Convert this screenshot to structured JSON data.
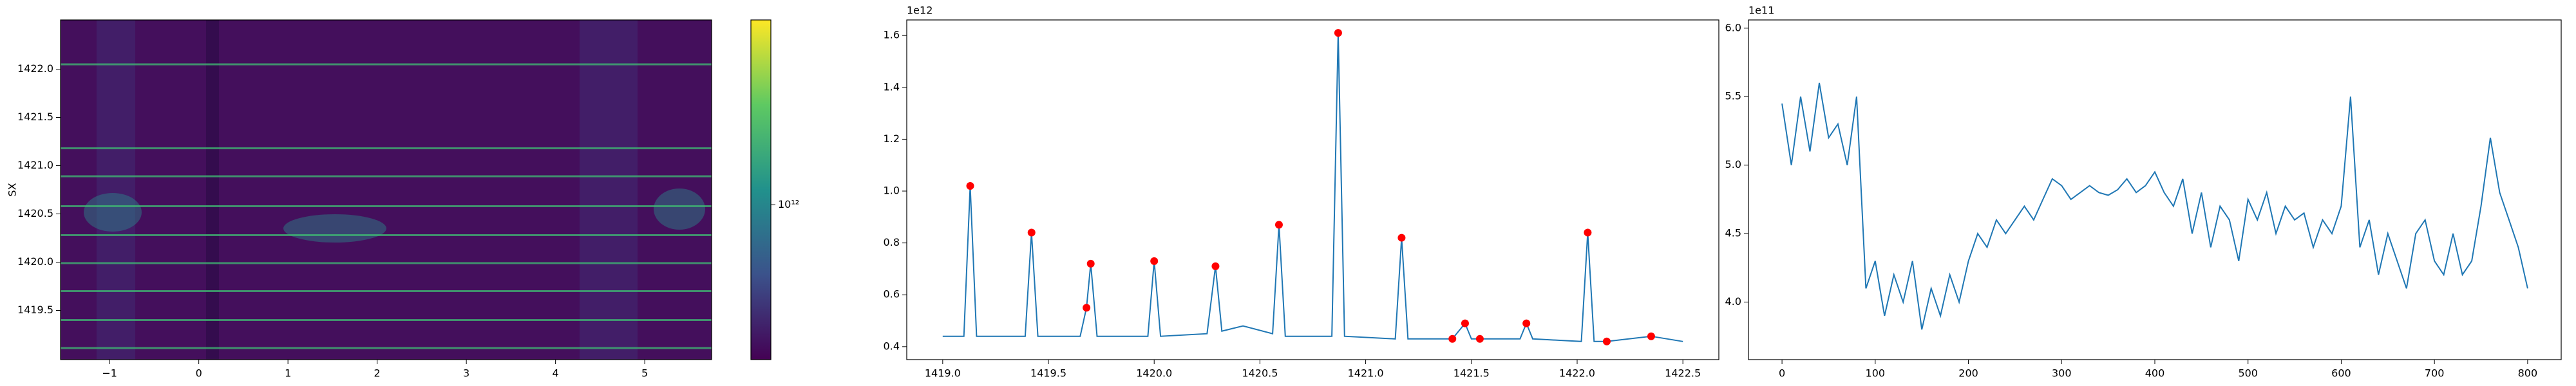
{
  "chart_data": [
    {
      "type": "heatmap",
      "ylabel": "SX",
      "xlim": [
        -1.55,
        5.75
      ],
      "ylim": [
        1418.99,
        1422.51
      ],
      "xticks": [
        {
          "value": -1,
          "label": "−1"
        },
        0,
        1,
        2,
        3,
        4,
        5
      ],
      "yticks": [
        1419.5,
        {
          "value": 1420.0,
          "label": "1420.0"
        },
        1420.5,
        {
          "value": 1421.0,
          "label": "1421.0"
        },
        1421.5,
        {
          "value": 1422.0,
          "label": "1422.0"
        }
      ],
      "bright_rows": [
        1419.11,
        1419.4,
        1419.7,
        1419.99,
        1420.28,
        1420.58,
        1420.89,
        1421.18,
        1422.05
      ],
      "colorbar": {
        "log": true,
        "clim": [
          350000000000.0,
          3500000000000.0
        ],
        "ticks": [
          {
            "value": 1000000000000.0,
            "label": "10¹²"
          }
        ]
      }
    },
    {
      "type": "line",
      "offset_text": "1e12",
      "color": "#1f77b4",
      "xlim": [
        1418.83,
        1422.67
      ],
      "ylim": [
        0.35,
        1.66
      ],
      "xticks": [
        {
          "value": 1419.0,
          "label": "1419.0"
        },
        1419.5,
        {
          "value": 1420.0,
          "label": "1420.0"
        },
        1420.5,
        {
          "value": 1421.0,
          "label": "1421.0"
        },
        1421.5,
        {
          "value": 1422.0,
          "label": "1422.0"
        },
        1422.5
      ],
      "yticks": [
        0.4,
        0.6,
        0.8,
        {
          "value": 1.0,
          "label": "1.0"
        },
        1.2,
        1.4,
        1.6
      ],
      "x": [
        1419.0,
        1419.1,
        1419.13,
        1419.16,
        1419.39,
        1419.42,
        1419.45,
        1419.65,
        1419.68,
        1419.7,
        1419.73,
        1419.97,
        1420.0,
        1420.03,
        1420.25,
        1420.29,
        1420.32,
        1420.42,
        1420.56,
        1420.59,
        1420.62,
        1420.84,
        1420.87,
        1420.9,
        1421.14,
        1421.17,
        1421.2,
        1421.41,
        1421.47,
        1421.5,
        1421.54,
        1421.73,
        1421.76,
        1421.79,
        1422.02,
        1422.05,
        1422.08,
        1422.14,
        1422.35,
        1422.5
      ],
      "values": [
        0.44,
        0.44,
        1.02,
        0.44,
        0.44,
        0.84,
        0.44,
        0.44,
        0.55,
        0.72,
        0.44,
        0.44,
        0.73,
        0.44,
        0.45,
        0.71,
        0.46,
        0.48,
        0.45,
        0.87,
        0.44,
        0.44,
        1.61,
        0.44,
        0.43,
        0.82,
        0.43,
        0.43,
        0.49,
        0.43,
        0.43,
        0.43,
        0.49,
        0.43,
        0.42,
        0.84,
        0.42,
        0.42,
        0.44,
        0.42
      ],
      "peaks": {
        "color": "red",
        "x": [
          1419.13,
          1419.42,
          1419.68,
          1419.7,
          1420.0,
          1420.29,
          1420.59,
          1420.87,
          1421.17,
          1421.41,
          1421.47,
          1421.54,
          1421.76,
          1422.05,
          1422.14,
          1422.35
        ],
        "values": [
          1.02,
          0.84,
          0.55,
          0.72,
          0.73,
          0.71,
          0.87,
          1.61,
          0.82,
          0.43,
          0.49,
          0.43,
          0.49,
          0.84,
          0.42,
          0.44
        ]
      }
    },
    {
      "type": "line",
      "offset_text": "1e11",
      "color": "#1f77b4",
      "xlim": [
        -36,
        836
      ],
      "ylim": [
        3.58,
        6.06
      ],
      "xticks": [
        0,
        100,
        200,
        300,
        400,
        500,
        600,
        700,
        800
      ],
      "yticks": [
        {
          "value": 4.0,
          "label": "4.0"
        },
        4.5,
        {
          "value": 5.0,
          "label": "5.0"
        },
        5.5,
        {
          "value": 6.0,
          "label": "6.0"
        }
      ],
      "x": [
        0,
        10,
        20,
        30,
        40,
        50,
        60,
        70,
        80,
        90,
        100,
        110,
        120,
        130,
        140,
        150,
        160,
        170,
        180,
        190,
        200,
        210,
        220,
        230,
        240,
        250,
        260,
        270,
        280,
        290,
        300,
        310,
        320,
        330,
        340,
        350,
        360,
        370,
        380,
        390,
        400,
        410,
        420,
        430,
        440,
        450,
        460,
        470,
        480,
        490,
        500,
        510,
        520,
        530,
        540,
        550,
        560,
        570,
        580,
        590,
        600,
        610,
        620,
        630,
        640,
        650,
        660,
        670,
        680,
        690,
        700,
        710,
        720,
        730,
        740,
        750,
        760,
        770,
        780,
        790,
        800
      ],
      "values": [
        5.45,
        5.0,
        5.5,
        5.1,
        5.6,
        5.2,
        5.3,
        5.0,
        5.5,
        4.1,
        4.3,
        3.9,
        4.2,
        4.0,
        4.3,
        3.8,
        4.1,
        3.9,
        4.2,
        4.0,
        4.3,
        4.5,
        4.4,
        4.6,
        4.5,
        4.6,
        4.7,
        4.6,
        4.75,
        4.9,
        4.85,
        4.75,
        4.8,
        4.85,
        4.8,
        4.78,
        4.82,
        4.9,
        4.8,
        4.85,
        4.95,
        4.8,
        4.7,
        4.9,
        4.5,
        4.8,
        4.4,
        4.7,
        4.6,
        4.3,
        4.75,
        4.6,
        4.8,
        4.5,
        4.7,
        4.6,
        4.65,
        4.4,
        4.6,
        4.5,
        4.7,
        5.5,
        4.4,
        4.6,
        4.2,
        4.5,
        4.3,
        4.1,
        4.5,
        4.6,
        4.3,
        4.2,
        4.5,
        4.2,
        4.3,
        4.7,
        5.2,
        4.8,
        4.6,
        4.4,
        4.1
      ]
    }
  ]
}
